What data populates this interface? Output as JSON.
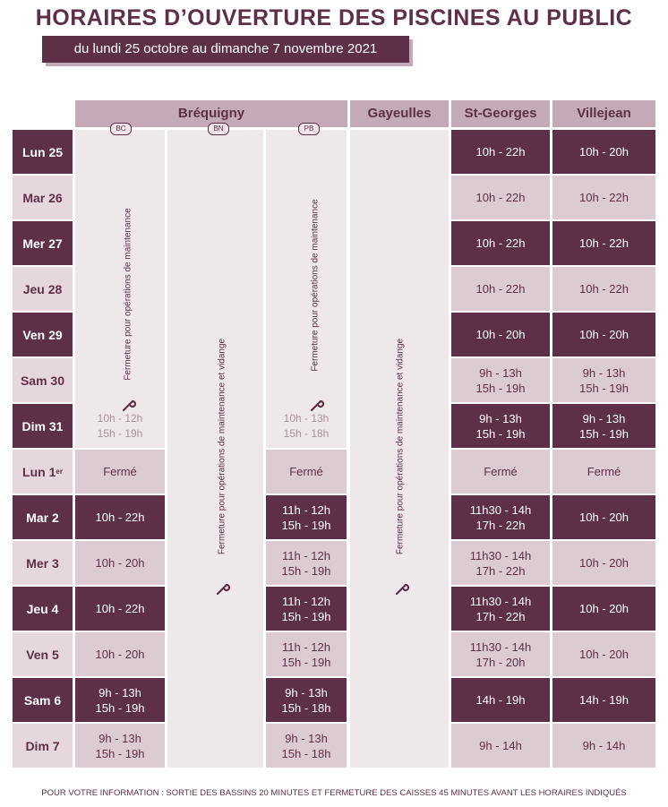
{
  "title": "HORAIRES D’OUVERTURE DES PISCINES AU PUBLIC",
  "subtitle": "du lundi 25 octobre au dimanche 7 novembre 2021",
  "headers": {
    "brequigny": "Bréquigny",
    "gayeulles": "Gayeulles",
    "stgeorges": "St-Georges",
    "villejean": "Villejean"
  },
  "sub_columns": [
    "BC",
    "BN",
    "PB"
  ],
  "closure_maintenance": "Fermeture pour opérations de maintenance",
  "closure_vidange": "Fermeture pour opérations de maintenance et vidange",
  "days": [
    "Lun 25",
    "Mar 26",
    "Mer 27",
    "Jeu 28",
    "Ven 29",
    "Sam 30",
    "Dim 31",
    "Lun 1er",
    "Mar 2",
    "Mer 3",
    "Jeu 4",
    "Ven 5",
    "Sam 6",
    "Dim 7"
  ],
  "ghost_times": {
    "bc": [
      "10h - 12h",
      "15h - 19h"
    ],
    "pb": [
      "10h - 13h",
      "15h - 18h"
    ]
  },
  "bc": [
    "",
    "",
    "",
    "",
    "",
    "",
    "",
    "Fermé",
    "10h - 22h",
    "10h - 20h",
    "10h - 22h",
    "10h - 20h",
    "9h - 13h\n15h - 19h",
    "9h - 13h\n15h - 19h"
  ],
  "pb": [
    "",
    "",
    "",
    "",
    "",
    "",
    "",
    "Fermé",
    "11h - 12h\n15h - 19h",
    "11h - 12h\n15h - 19h",
    "11h - 12h\n15h - 19h",
    "11h - 12h\n15h - 19h",
    "9h - 13h\n15h - 18h",
    "9h - 13h\n15h - 18h"
  ],
  "stgeorges": [
    "10h - 22h",
    "10h - 22h",
    "10h - 22h",
    "10h - 22h",
    "10h - 20h",
    "9h - 13h\n15h - 19h",
    "9h - 13h\n15h - 19h",
    "Fermé",
    "11h30 - 14h\n17h - 22h",
    "11h30 - 14h\n17h - 22h",
    "11h30 - 14h\n17h - 22h",
    "11h30 - 14h\n17h - 20h",
    "14h - 19h",
    "9h - 14h"
  ],
  "villejean": [
    "10h - 20h",
    "10h - 22h",
    "10h - 22h",
    "10h - 22h",
    "10h - 20h",
    "9h - 13h\n15h - 19h",
    "9h - 13h\n15h - 19h",
    "Fermé",
    "10h - 20h",
    "10h - 20h",
    "10h - 20h",
    "10h - 20h",
    "14h - 19h",
    "9h - 14h"
  ],
  "footer": "POUR VOTRE INFORMATION : SORTIE DES BASSINS 20 MINUTES ET FERMETURE DES CAISSES 45 MINUTES AVANT LES HORAIRES INDIQUÉS"
}
